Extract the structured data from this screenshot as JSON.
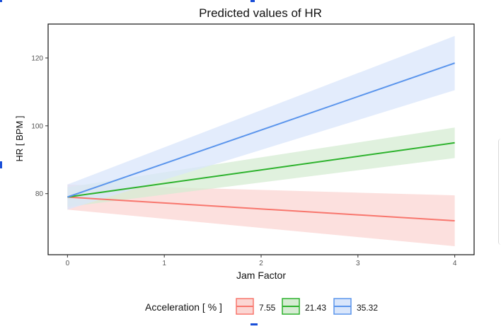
{
  "chart_data": {
    "type": "line",
    "title": "Predicted values of HR",
    "xlabel": "Jam Factor",
    "ylabel": "HR [ BPM ]",
    "xlim": [
      -0.2,
      4.2
    ],
    "ylim": [
      62,
      130
    ],
    "x_ticks": [
      0,
      1,
      2,
      3,
      4
    ],
    "y_ticks": [
      80,
      100,
      120
    ],
    "grid": false,
    "legend": {
      "title": "Acceleration [ % ]",
      "position": "bottom"
    },
    "series": [
      {
        "name": "7.55",
        "color": "#F8766D",
        "band_color": "#FBD6D3",
        "x": [
          0,
          4
        ],
        "y": [
          79,
          72
        ],
        "lower": [
          75.3,
          64.5
        ],
        "upper": [
          82.7,
          79.5
        ]
      },
      {
        "name": "21.43",
        "color": "#2DB22D",
        "band_color": "#D6ECD3",
        "x": [
          0,
          4
        ],
        "y": [
          79,
          95
        ],
        "lower": [
          76.1,
          90.5
        ],
        "upper": [
          81.9,
          99.5
        ]
      },
      {
        "name": "35.32",
        "color": "#5B95EC",
        "band_color": "#D9E6FB",
        "x": [
          0,
          4
        ],
        "y": [
          79,
          118.5
        ],
        "lower": [
          75.3,
          110.5
        ],
        "upper": [
          82.7,
          126.5
        ]
      }
    ]
  }
}
